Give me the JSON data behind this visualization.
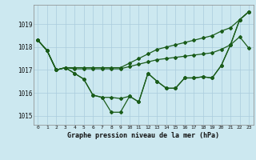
{
  "hours": [
    0,
    1,
    2,
    3,
    4,
    5,
    6,
    7,
    8,
    9,
    10,
    11,
    12,
    13,
    14,
    15,
    16,
    17,
    18,
    19,
    20,
    21,
    22,
    23
  ],
  "line_max": [
    1018.3,
    1017.85,
    1017.0,
    1017.1,
    1017.1,
    1017.1,
    1017.1,
    1017.1,
    1017.1,
    1017.1,
    1017.3,
    1017.5,
    1017.7,
    1017.9,
    1018.0,
    1018.1,
    1018.2,
    1018.3,
    1018.4,
    1018.5,
    1018.7,
    1018.85,
    1019.2,
    1019.55
  ],
  "line_avg_high": [
    1018.3,
    1017.85,
    1017.0,
    1017.1,
    1017.05,
    1017.05,
    1017.05,
    1017.05,
    1017.05,
    1017.05,
    1017.15,
    1017.25,
    1017.35,
    1017.45,
    1017.5,
    1017.55,
    1017.6,
    1017.65,
    1017.7,
    1017.75,
    1017.9,
    1018.1,
    1018.45,
    1017.95
  ],
  "line_avg_low": [
    1018.3,
    1017.85,
    1017.0,
    1017.1,
    1016.85,
    1016.6,
    1015.9,
    1015.8,
    1015.8,
    1015.75,
    1015.85,
    1015.6,
    1016.85,
    1016.5,
    1016.2,
    1016.2,
    1016.65,
    1016.65,
    1016.7,
    1016.65,
    1017.2,
    1018.1,
    1019.2,
    1019.55
  ],
  "line_min": [
    1018.3,
    1017.85,
    1017.0,
    1017.1,
    1016.85,
    1016.6,
    1015.9,
    1015.8,
    1015.15,
    1015.15,
    1015.85,
    1015.6,
    1016.85,
    1016.5,
    1016.2,
    1016.2,
    1016.65,
    1016.65,
    1016.7,
    1016.65,
    1017.2,
    1018.1,
    1019.2,
    1019.55
  ],
  "background_color": "#cce8f0",
  "grid_color": "#aaccdd",
  "line_color": "#1a5c1a",
  "title": "Graphe pression niveau de la mer (hPa)",
  "ylabel_ticks": [
    1015,
    1016,
    1017,
    1018,
    1019
  ],
  "ylim": [
    1014.6,
    1019.85
  ],
  "xlim": [
    -0.5,
    23.5
  ]
}
